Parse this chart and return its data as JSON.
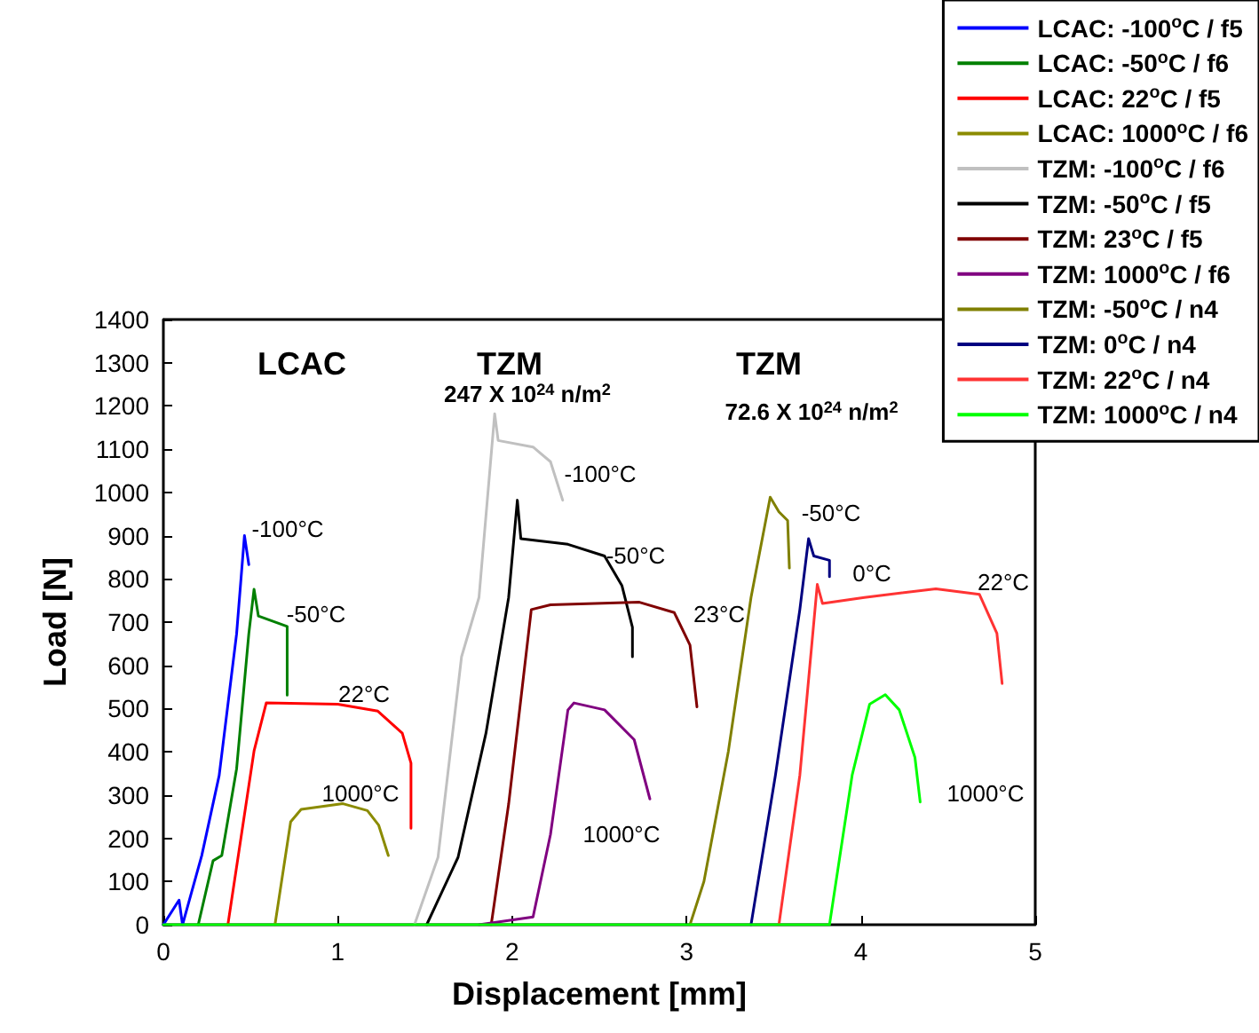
{
  "chart_data": {
    "type": "line",
    "xlabel": "Displacement [mm]",
    "ylabel": "Load [N]",
    "xlim": [
      0,
      5
    ],
    "xticks": [
      0,
      1,
      2,
      3,
      4,
      5
    ],
    "ylim": [
      0,
      1400
    ],
    "yticks": [
      0,
      100,
      200,
      300,
      400,
      500,
      600,
      700,
      800,
      900,
      1000,
      1100,
      1200,
      1300,
      1400
    ],
    "grid": false,
    "legend": "top right",
    "marker": "none",
    "line_style": "solid",
    "series": [
      {
        "name": "LCAC: -100$^{o}$C / f5",
        "color": "#0000ff",
        "x": [
          0,
          0.09,
          0.11,
          0.22,
          0.32,
          0.42,
          0.465,
          0.49
        ],
        "values": [
          0,
          57,
          0,
          160,
          345,
          673,
          900,
          833
        ]
      },
      {
        "name": "LCAC: -50$^{o}$C / f6",
        "color": "#008000",
        "x": [
          0.2,
          0.285,
          0.335,
          0.42,
          0.49,
          0.52,
          0.545,
          0.71,
          0.71
        ],
        "values": [
          0,
          148,
          160,
          361,
          673,
          776,
          714,
          690,
          531
        ]
      },
      {
        "name": "LCAC: 22$^{o}$C / f5",
        "color": "#ff0000",
        "x": [
          0.37,
          0.52,
          0.59,
          1.0,
          1.23,
          1.37,
          1.42,
          1.42
        ],
        "values": [
          0,
          402,
          513,
          510,
          494,
          443,
          374,
          223
        ]
      },
      {
        "name": "LCAC: 1000$^{o}$C / f6",
        "color": "#8b8b00",
        "x": [
          0.64,
          0.73,
          0.79,
          1.03,
          1.17,
          1.235,
          1.29
        ],
        "values": [
          0,
          238,
          267,
          280,
          264,
          230,
          160
        ]
      },
      {
        "name": "TZM: -100$^{o}$C / f6",
        "color": "#c0c0c0",
        "x": [
          1.44,
          1.575,
          1.71,
          1.81,
          1.9,
          1.92,
          2.12,
          2.22,
          2.29
        ],
        "values": [
          0,
          156,
          620,
          757,
          1182,
          1120,
          1105,
          1071,
          982
        ]
      },
      {
        "name": "TZM: -50$^{o}$C / f5",
        "color": "#000000",
        "x": [
          1.51,
          1.69,
          1.85,
          1.98,
          2.03,
          2.05,
          2.32,
          2.53,
          2.63,
          2.69,
          2.69
        ],
        "values": [
          0,
          156,
          443,
          757,
          982,
          893,
          880,
          853,
          784,
          688,
          620
        ]
      },
      {
        "name": "TZM: 23$^{o}$C / f5",
        "color": "#800000",
        "x": [
          1.88,
          1.98,
          2.11,
          2.22,
          2.73,
          2.93,
          3.02,
          3.06
        ],
        "values": [
          0,
          279,
          729,
          740,
          746,
          722,
          647,
          504
        ]
      },
      {
        "name": "TZM: 1000$^{o}$C / f6",
        "color": "#800080",
        "x": [
          1.81,
          2.12,
          2.22,
          2.32,
          2.355,
          2.53,
          2.7,
          2.79
        ],
        "values": [
          0,
          18,
          209,
          497,
          513,
          497,
          428,
          291
        ]
      },
      {
        "name": "TZM: -50$^{o}$C / n4",
        "color": "#808000",
        "x": [
          3.02,
          3.1,
          3.24,
          3.37,
          3.48,
          3.53,
          3.58,
          3.59
        ],
        "values": [
          0,
          100,
          401,
          757,
          989,
          955,
          935,
          825
        ]
      },
      {
        "name": "TZM: 0$^{o}$C / n4",
        "color": "#000080",
        "x": [
          3.37,
          3.51,
          3.65,
          3.7,
          3.73,
          3.82,
          3.82
        ],
        "values": [
          0,
          346,
          729,
          893,
          853,
          843,
          805
        ]
      },
      {
        "name": "TZM: 22$^{o}$C / n4",
        "color": "#ff3333",
        "x": [
          3.53,
          3.65,
          3.75,
          3.78,
          4.02,
          4.43,
          4.68,
          4.78,
          4.81
        ],
        "values": [
          0,
          346,
          787,
          743,
          757,
          777,
          764,
          674,
          558
        ]
      },
      {
        "name": "TZM: 1000$^{o}$C / n4",
        "color": "#00ff00",
        "x": [
          0,
          3.82,
          3.95,
          4.05,
          4.14,
          4.22,
          4.31,
          4.34
        ],
        "values": [
          0,
          0,
          346,
          510,
          532,
          497,
          387,
          284
        ]
      }
    ],
    "annotations": [
      "LCAC",
      "TZM",
      "247 X 10$^{24}$ n/m$^{2}$",
      "TZM",
      "72.6 X 10$^{24}$ n/m$^{2}$",
      "-100°C",
      "-50°C",
      "22°C",
      "1000°C",
      "-100°C",
      "-50°C",
      "23°C",
      "1000°C",
      "-50°C",
      "0°C",
      "22°C",
      "1000°C"
    ]
  }
}
